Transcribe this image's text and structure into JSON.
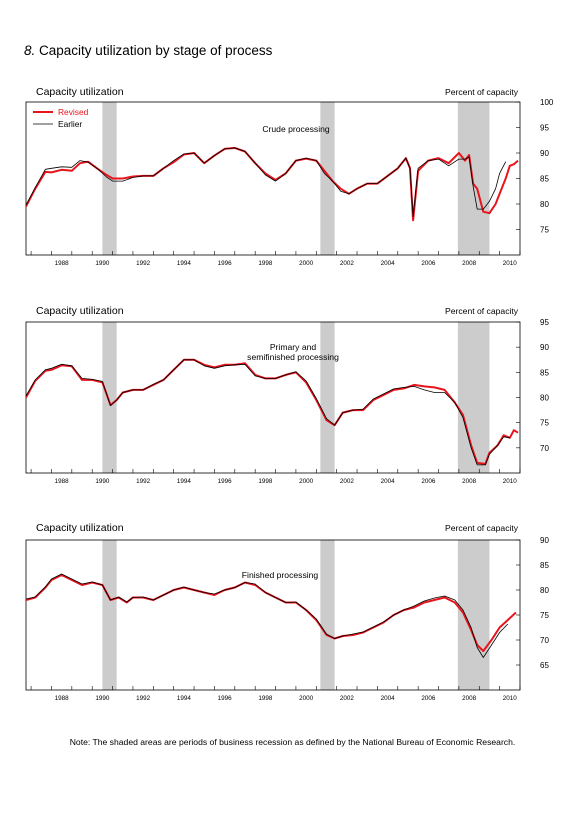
{
  "figure": {
    "number": "8.",
    "title": "Capacity utilization by stage of process",
    "note": "Note: The shaded areas are periods of business recession as defined by the National Bureau of Economic Research."
  },
  "colors": {
    "revised": "#e8141c",
    "earlier": "#000000",
    "recession": "#cccccc"
  },
  "legend": {
    "revised": "Revised",
    "earlier": "Earlier"
  },
  "chart_data": [
    {
      "type": "line",
      "title": "Crude processing",
      "ylabel": "Capacity utilization",
      "y_units": "Percent of capacity",
      "ylim": [
        70,
        100
      ],
      "y_ticks": [
        75,
        80,
        85,
        90,
        95,
        100
      ],
      "x_range": [
        1986.75,
        2011.0
      ],
      "x_ticks": [
        1988,
        1990,
        1992,
        1994,
        1996,
        1998,
        2000,
        2002,
        2004,
        2006,
        2008,
        2010
      ],
      "legend_position": "top-left",
      "recessions": [
        [
          1990.5,
          1991.2
        ],
        [
          2001.2,
          2001.9
        ],
        [
          2007.95,
          2009.5
        ]
      ],
      "series": [
        {
          "name": "Revised",
          "color": "#e8141c",
          "x": [
            1986.75,
            1987.2,
            1987.7,
            1988.0,
            1988.5,
            1989.0,
            1989.4,
            1989.8,
            1990.3,
            1990.7,
            1991.0,
            1991.5,
            1992.0,
            1992.5,
            1993.0,
            1993.5,
            1994.0,
            1994.5,
            1995.0,
            1995.5,
            1996.0,
            1996.5,
            1997.0,
            1997.5,
            1998.0,
            1998.5,
            1999.0,
            1999.5,
            2000.0,
            2000.5,
            2001.0,
            2001.4,
            2001.8,
            2002.2,
            2002.6,
            2003.0,
            2003.5,
            2004.0,
            2004.5,
            2005.0,
            2005.4,
            2005.6,
            2005.75,
            2006.0,
            2006.5,
            2007.0,
            2007.5,
            2008.0,
            2008.3,
            2008.5,
            2008.7,
            2008.9,
            2009.2,
            2009.5,
            2009.8,
            2010.0,
            2010.3,
            2010.5,
            2010.7,
            2010.9
          ],
          "y": [
            79.5,
            83,
            86.3,
            86.2,
            86.7,
            86.5,
            88,
            88.3,
            86.8,
            85.7,
            85,
            85,
            85.4,
            85.5,
            85.5,
            87,
            88.2,
            89.7,
            90,
            88,
            89.5,
            90.8,
            91,
            90.3,
            88,
            86,
            84.7,
            86,
            88.5,
            88.9,
            88.5,
            86.5,
            84.5,
            83,
            82,
            83,
            84,
            84,
            85.5,
            87,
            89,
            87,
            76.8,
            86.5,
            88.5,
            89,
            88,
            90,
            88.5,
            89.6,
            84,
            83,
            78.5,
            78.2,
            80,
            82,
            85,
            87.5,
            87.8,
            88.5
          ]
        },
        {
          "name": "Earlier",
          "color": "#000000",
          "x": [
            1986.75,
            1987.2,
            1987.7,
            1988.0,
            1988.5,
            1989.0,
            1989.4,
            1989.8,
            1990.3,
            1990.7,
            1991.0,
            1991.5,
            1992.0,
            1992.5,
            1993.0,
            1993.5,
            1994.0,
            1994.5,
            1995.0,
            1995.5,
            1996.0,
            1996.5,
            1997.0,
            1997.5,
            1998.0,
            1998.5,
            1999.0,
            1999.5,
            2000.0,
            2000.5,
            2001.0,
            2001.4,
            2001.8,
            2002.2,
            2002.6,
            2003.0,
            2003.5,
            2004.0,
            2004.5,
            2005.0,
            2005.4,
            2005.6,
            2005.75,
            2006.0,
            2006.5,
            2007.0,
            2007.5,
            2008.0,
            2008.3,
            2008.5,
            2008.7,
            2008.9,
            2009.2,
            2009.5,
            2009.8,
            2010.0,
            2010.3
          ],
          "y": [
            79.8,
            83.2,
            86.8,
            87,
            87.3,
            87.2,
            88.5,
            88.2,
            86.8,
            85.3,
            84.5,
            84.5,
            85.2,
            85.5,
            85.5,
            87,
            88.5,
            89.8,
            90,
            88,
            89.5,
            90.8,
            91,
            90.3,
            88,
            85.7,
            84.5,
            86,
            88.5,
            89,
            88.5,
            86,
            84.5,
            82.5,
            82,
            83,
            84,
            84,
            85.5,
            87,
            89,
            87,
            77.5,
            87,
            88.5,
            88.8,
            87.5,
            88.8,
            88.8,
            89.2,
            83.5,
            79,
            79,
            80.5,
            83,
            86,
            88.3
          ]
        }
      ]
    },
    {
      "type": "line",
      "title": "Primary and\nsemifinished processing",
      "ylabel": "Capacity utilization",
      "y_units": "Percent of capacity",
      "ylim": [
        65,
        95
      ],
      "y_ticks": [
        70,
        75,
        80,
        85,
        90,
        95
      ],
      "x_range": [
        1986.75,
        2011.0
      ],
      "x_ticks": [
        1988,
        1990,
        1992,
        1994,
        1996,
        1998,
        2000,
        2002,
        2004,
        2006,
        2008,
        2010
      ],
      "legend_position": "none",
      "recessions": [
        [
          1990.5,
          1991.2
        ],
        [
          2001.2,
          2001.9
        ],
        [
          2007.95,
          2009.5
        ]
      ],
      "series": [
        {
          "name": "Revised",
          "color": "#e8141c",
          "x": [
            1986.75,
            1987.2,
            1987.7,
            1988.0,
            1988.5,
            1989.0,
            1989.5,
            1990.0,
            1990.5,
            1990.9,
            1991.2,
            1991.5,
            1992.0,
            1992.5,
            1993.0,
            1993.5,
            1994.0,
            1994.5,
            1995.0,
            1995.5,
            1996.0,
            1996.5,
            1997.0,
            1997.5,
            1998.0,
            1998.5,
            1999.0,
            1999.5,
            2000.0,
            2000.5,
            2001.0,
            2001.5,
            2001.9,
            2002.3,
            2002.8,
            2003.3,
            2003.8,
            2004.3,
            2004.8,
            2005.3,
            2005.8,
            2006.3,
            2006.8,
            2007.3,
            2007.8,
            2008.2,
            2008.6,
            2008.9,
            2009.3,
            2009.5,
            2009.9,
            2010.2,
            2010.5,
            2010.7,
            2010.9
          ],
          "y": [
            80,
            83.3,
            85.3,
            85.5,
            86.4,
            86.2,
            83.5,
            83.5,
            83,
            78.5,
            79.5,
            81,
            81.5,
            81.5,
            82.5,
            83.5,
            85.5,
            87.5,
            87.5,
            86.5,
            86,
            86.5,
            86.5,
            86.8,
            84.5,
            83.8,
            83.8,
            84.5,
            85,
            83,
            79.5,
            75.5,
            74.5,
            77,
            77.5,
            77.5,
            79.5,
            80.5,
            81.5,
            81.8,
            82.5,
            82.2,
            82,
            81.5,
            79,
            76.5,
            70.5,
            67,
            66.8,
            69,
            70.5,
            72.5,
            72,
            73.5,
            73
          ]
        },
        {
          "name": "Earlier",
          "color": "#000000",
          "x": [
            1986.75,
            1987.2,
            1987.7,
            1988.0,
            1988.5,
            1989.0,
            1989.5,
            1990.0,
            1990.5,
            1990.9,
            1991.2,
            1991.5,
            1992.0,
            1992.5,
            1993.0,
            1993.5,
            1994.0,
            1994.5,
            1995.0,
            1995.5,
            1996.0,
            1996.5,
            1997.0,
            1997.5,
            1998.0,
            1998.5,
            1999.0,
            1999.5,
            2000.0,
            2000.5,
            2001.0,
            2001.5,
            2001.9,
            2002.3,
            2002.8,
            2003.3,
            2003.8,
            2004.3,
            2004.8,
            2005.3,
            2005.8,
            2006.3,
            2006.8,
            2007.3,
            2007.8,
            2008.2,
            2008.6,
            2008.9,
            2009.3,
            2009.5,
            2009.9,
            2010.2,
            2010.5
          ],
          "y": [
            80.3,
            83.5,
            85.5,
            85.8,
            86.6,
            86.3,
            83.8,
            83.6,
            83.2,
            78.4,
            79.5,
            81,
            81.5,
            81.5,
            82.6,
            83.5,
            85.5,
            87.5,
            87.5,
            86.3,
            85.8,
            86.3,
            86.5,
            86.6,
            84.3,
            83.8,
            83.8,
            84.5,
            85.1,
            83.3,
            79.8,
            75.8,
            74.5,
            77,
            77.5,
            77.7,
            79.7,
            80.7,
            81.7,
            82,
            82.2,
            81.5,
            81,
            81,
            79,
            76,
            70,
            66.6,
            66.6,
            68.7,
            70.5,
            72.2,
            72
          ]
        }
      ]
    },
    {
      "type": "line",
      "title": "Finished processing",
      "ylabel": "Capacity utilization",
      "y_units": "Percent of capacity",
      "ylim": [
        60,
        90
      ],
      "y_ticks": [
        65,
        70,
        75,
        80,
        85,
        90
      ],
      "x_range": [
        1986.75,
        2011.0
      ],
      "x_ticks": [
        1988,
        1990,
        1992,
        1994,
        1996,
        1998,
        2000,
        2002,
        2004,
        2006,
        2008,
        2010
      ],
      "legend_position": "none",
      "recessions": [
        [
          1990.5,
          1991.2
        ],
        [
          2001.2,
          2001.9
        ],
        [
          2007.95,
          2009.5
        ]
      ],
      "series": [
        {
          "name": "Revised",
          "color": "#e8141c",
          "x": [
            1986.75,
            1987.2,
            1987.7,
            1988.0,
            1988.5,
            1989.0,
            1989.5,
            1990.0,
            1990.5,
            1990.9,
            1991.3,
            1991.7,
            1992.0,
            1992.5,
            1993.0,
            1993.5,
            1994.0,
            1994.5,
            1995.0,
            1995.5,
            1996.0,
            1996.5,
            1997.0,
            1997.5,
            1998.0,
            1998.5,
            1999.0,
            1999.5,
            2000.0,
            2000.5,
            2001.0,
            2001.5,
            2001.9,
            2002.3,
            2002.8,
            2003.3,
            2003.8,
            2004.3,
            2004.8,
            2005.3,
            2005.8,
            2006.3,
            2006.8,
            2007.3,
            2007.8,
            2008.2,
            2008.6,
            2008.9,
            2009.2,
            2009.6,
            2010.0,
            2010.4,
            2010.8
          ],
          "y": [
            78,
            78.5,
            80.5,
            82,
            83,
            82,
            81,
            81.5,
            81,
            78,
            78.5,
            77.5,
            78.5,
            78.5,
            78,
            79,
            80,
            80.5,
            80,
            79.5,
            79,
            80,
            80.5,
            81.5,
            81,
            79.5,
            78.5,
            77.5,
            77.5,
            76,
            74,
            71,
            70.3,
            70.8,
            71,
            71.5,
            72.5,
            73.5,
            75,
            76,
            76.5,
            77.5,
            78,
            78.5,
            77.5,
            75.5,
            72,
            69,
            67.8,
            70,
            72.5,
            74,
            75.5
          ]
        },
        {
          "name": "Earlier",
          "color": "#000000",
          "x": [
            1986.75,
            1987.2,
            1987.7,
            1988.0,
            1988.5,
            1989.0,
            1989.5,
            1990.0,
            1990.5,
            1990.9,
            1991.3,
            1991.7,
            1992.0,
            1992.5,
            1993.0,
            1993.5,
            1994.0,
            1994.5,
            1995.0,
            1995.5,
            1996.0,
            1996.5,
            1997.0,
            1997.5,
            1998.0,
            1998.5,
            1999.0,
            1999.5,
            2000.0,
            2000.5,
            2001.0,
            2001.5,
            2001.9,
            2002.3,
            2002.8,
            2003.3,
            2003.8,
            2004.3,
            2004.8,
            2005.3,
            2005.8,
            2006.3,
            2006.8,
            2007.3,
            2007.8,
            2008.2,
            2008.6,
            2008.9,
            2009.2,
            2009.6,
            2010.0,
            2010.4
          ],
          "y": [
            78.2,
            78.6,
            80.6,
            82.2,
            83.2,
            82.2,
            81.2,
            81.6,
            81,
            78,
            78.6,
            77.6,
            78.5,
            78.6,
            78,
            79,
            80,
            80.6,
            80,
            79.5,
            79.2,
            80,
            80.5,
            81.5,
            81.2,
            79.5,
            78.5,
            77.5,
            77.6,
            76,
            74.2,
            71.2,
            70.3,
            70.8,
            71.2,
            71.6,
            72.6,
            73.6,
            75,
            76,
            76.8,
            77.8,
            78.4,
            78.8,
            78,
            76,
            72.5,
            68.5,
            66.5,
            69,
            71.5,
            73.2
          ]
        }
      ]
    }
  ]
}
